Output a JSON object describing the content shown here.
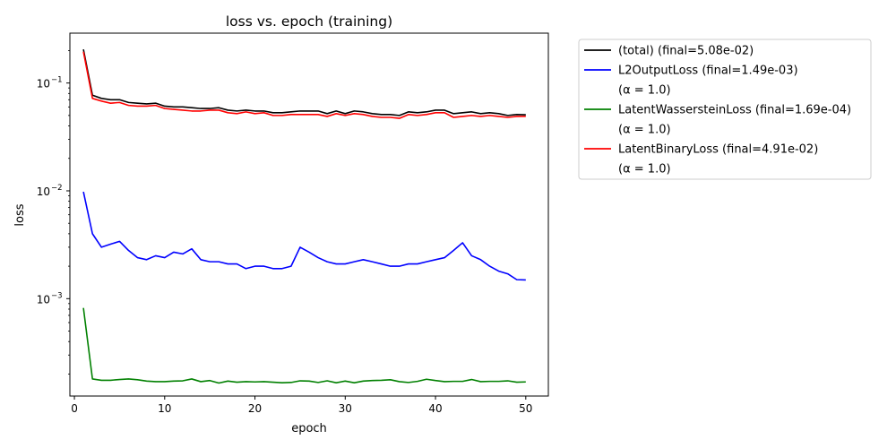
{
  "chart_data": {
    "type": "line",
    "title": "loss vs. epoch (training)",
    "xlabel": "epoch",
    "ylabel": "loss",
    "xlim": [
      -0.5,
      52.5
    ],
    "xticks": [
      0,
      10,
      20,
      30,
      40,
      50
    ],
    "xtick_labels": [
      "0",
      "10",
      "20",
      "30",
      "40",
      "50"
    ],
    "yscale": "log",
    "ylim": [
      0.000125,
      0.29
    ],
    "yticks": [
      0.001,
      0.01,
      0.1
    ],
    "ytick_labels": [
      "10",
      "10",
      "10"
    ],
    "ytick_exponents": [
      "−3",
      "−2",
      "−1"
    ],
    "grid": false,
    "legend_position": "outside-right",
    "x": [
      1,
      2,
      3,
      4,
      5,
      6,
      7,
      8,
      9,
      10,
      11,
      12,
      13,
      14,
      15,
      16,
      17,
      18,
      19,
      20,
      21,
      22,
      23,
      24,
      25,
      26,
      27,
      28,
      29,
      30,
      31,
      32,
      33,
      34,
      35,
      36,
      37,
      38,
      39,
      40,
      41,
      42,
      43,
      44,
      45,
      46,
      47,
      48,
      49,
      50
    ],
    "series": [
      {
        "name": "(total)      (final=5.08e-02)",
        "sub": "",
        "color": "#000000",
        "values": [
          0.205,
          0.077,
          0.072,
          0.07,
          0.07,
          0.066,
          0.065,
          0.064,
          0.065,
          0.061,
          0.06,
          0.06,
          0.059,
          0.058,
          0.058,
          0.059,
          0.056,
          0.055,
          0.056,
          0.055,
          0.055,
          0.053,
          0.053,
          0.054,
          0.055,
          0.055,
          0.055,
          0.052,
          0.055,
          0.052,
          0.055,
          0.054,
          0.052,
          0.051,
          0.051,
          0.05,
          0.054,
          0.053,
          0.054,
          0.056,
          0.056,
          0.052,
          0.053,
          0.054,
          0.052,
          0.053,
          0.052,
          0.05,
          0.051,
          0.0508
        ]
      },
      {
        "name": "L2OutputLoss (final=1.49e-03)",
        "sub": "(α = 1.0)",
        "color": "#0000ff",
        "values": [
          0.0098,
          0.004,
          0.003,
          0.0032,
          0.0034,
          0.0028,
          0.0024,
          0.0023,
          0.0025,
          0.0024,
          0.0027,
          0.0026,
          0.0029,
          0.0023,
          0.0022,
          0.0022,
          0.0021,
          0.0021,
          0.0019,
          0.002,
          0.002,
          0.0019,
          0.0019,
          0.002,
          0.003,
          0.0027,
          0.0024,
          0.0022,
          0.0021,
          0.0021,
          0.0022,
          0.0023,
          0.0022,
          0.0021,
          0.002,
          0.002,
          0.0021,
          0.0021,
          0.0022,
          0.0023,
          0.0024,
          0.0028,
          0.0033,
          0.0025,
          0.0023,
          0.002,
          0.0018,
          0.0017,
          0.0015,
          0.00149
        ]
      },
      {
        "name": "LatentWassersteinLoss (final=1.69e-04)",
        "sub": "(α = 1.0)",
        "color": "#008000",
        "values": [
          0.00082,
          0.00018,
          0.000175,
          0.000175,
          0.000178,
          0.00018,
          0.000177,
          0.000172,
          0.00017,
          0.00017,
          0.000172,
          0.000173,
          0.00018,
          0.00017,
          0.000174,
          0.000165,
          0.000172,
          0.000168,
          0.00017,
          0.000169,
          0.00017,
          0.000168,
          0.000166,
          0.000167,
          0.000173,
          0.000172,
          0.000167,
          0.000173,
          0.000166,
          0.000172,
          0.000166,
          0.000172,
          0.000174,
          0.000175,
          0.000177,
          0.00017,
          0.000167,
          0.000171,
          0.000179,
          0.000174,
          0.00017,
          0.000171,
          0.000171,
          0.000178,
          0.00017,
          0.000171,
          0.000171,
          0.000173,
          0.000168,
          0.000169
        ]
      },
      {
        "name": "LatentBinaryLoss (final=4.91e-02)",
        "sub": "(α = 1.0)",
        "color": "#ff0000",
        "values": [
          0.195,
          0.072,
          0.068,
          0.065,
          0.066,
          0.062,
          0.061,
          0.061,
          0.062,
          0.058,
          0.057,
          0.056,
          0.055,
          0.055,
          0.056,
          0.056,
          0.053,
          0.052,
          0.054,
          0.052,
          0.053,
          0.05,
          0.05,
          0.051,
          0.051,
          0.051,
          0.051,
          0.049,
          0.052,
          0.05,
          0.052,
          0.051,
          0.049,
          0.048,
          0.048,
          0.047,
          0.051,
          0.05,
          0.051,
          0.053,
          0.053,
          0.048,
          0.049,
          0.05,
          0.049,
          0.05,
          0.049,
          0.048,
          0.049,
          0.0491
        ]
      }
    ]
  }
}
